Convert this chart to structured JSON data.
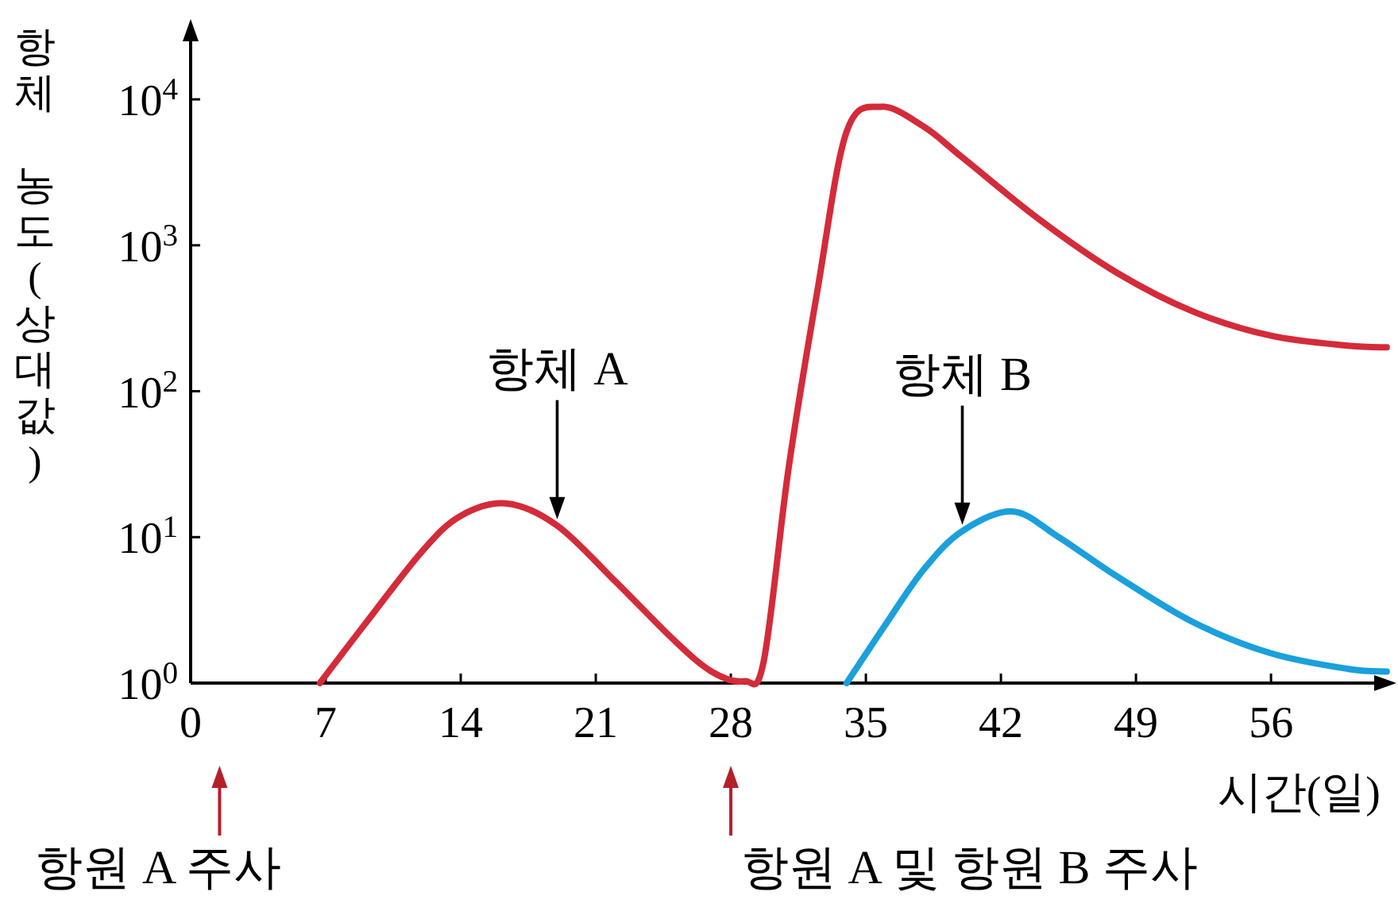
{
  "chart_data": {
    "type": "line",
    "xlabel": "시간(일)",
    "ylabel": "항체 농도(상대값)",
    "log": "y",
    "xlim": [
      0,
      62.5
    ],
    "xticks": [
      0,
      7,
      14,
      21,
      28,
      35,
      42,
      49,
      56
    ],
    "ylim": [
      1,
      25000
    ],
    "yticks": [
      {
        "value": 1,
        "label": "10$^{0}$"
      },
      {
        "value": 10,
        "label": "10$^{1}$"
      },
      {
        "value": 100,
        "label": "10$^{2}$"
      },
      {
        "value": 1000,
        "label": "10$^{3}$"
      },
      {
        "value": 10000,
        "label": "10$^{4}$"
      }
    ],
    "grid": false,
    "series": [
      {
        "color": "#d42b3a",
        "x": [
          6.7,
          9,
          12,
          14,
          16.4,
          19,
          22,
          25,
          27,
          28.7,
          29.7,
          31,
          32.5,
          34,
          35.8,
          38,
          40,
          44,
          48,
          52,
          56,
          60,
          62
        ],
        "values": [
          1,
          2.5,
          8,
          14,
          17,
          12,
          5,
          2,
          1.2,
          1.03,
          1.4,
          30,
          500,
          6000,
          8900,
          6500,
          4000,
          1500,
          650,
          350,
          240,
          205,
          200
        ]
      },
      {
        "color": "#1aa0dc",
        "x": [
          34,
          36,
          38,
          40,
          42.6,
          45,
          48,
          52,
          56,
          60,
          62
        ],
        "values": [
          1,
          2.5,
          6,
          11,
          15,
          10,
          5.4,
          2.6,
          1.6,
          1.25,
          1.2
        ]
      }
    ],
    "annotations": [
      {
        "text": "항체 A",
        "x": 19,
        "y": 12
      },
      {
        "text": "항체 B",
        "x": 40,
        "y": 11
      },
      "항원 A 주사",
      "항원 A 및 항원 B 주사"
    ]
  }
}
